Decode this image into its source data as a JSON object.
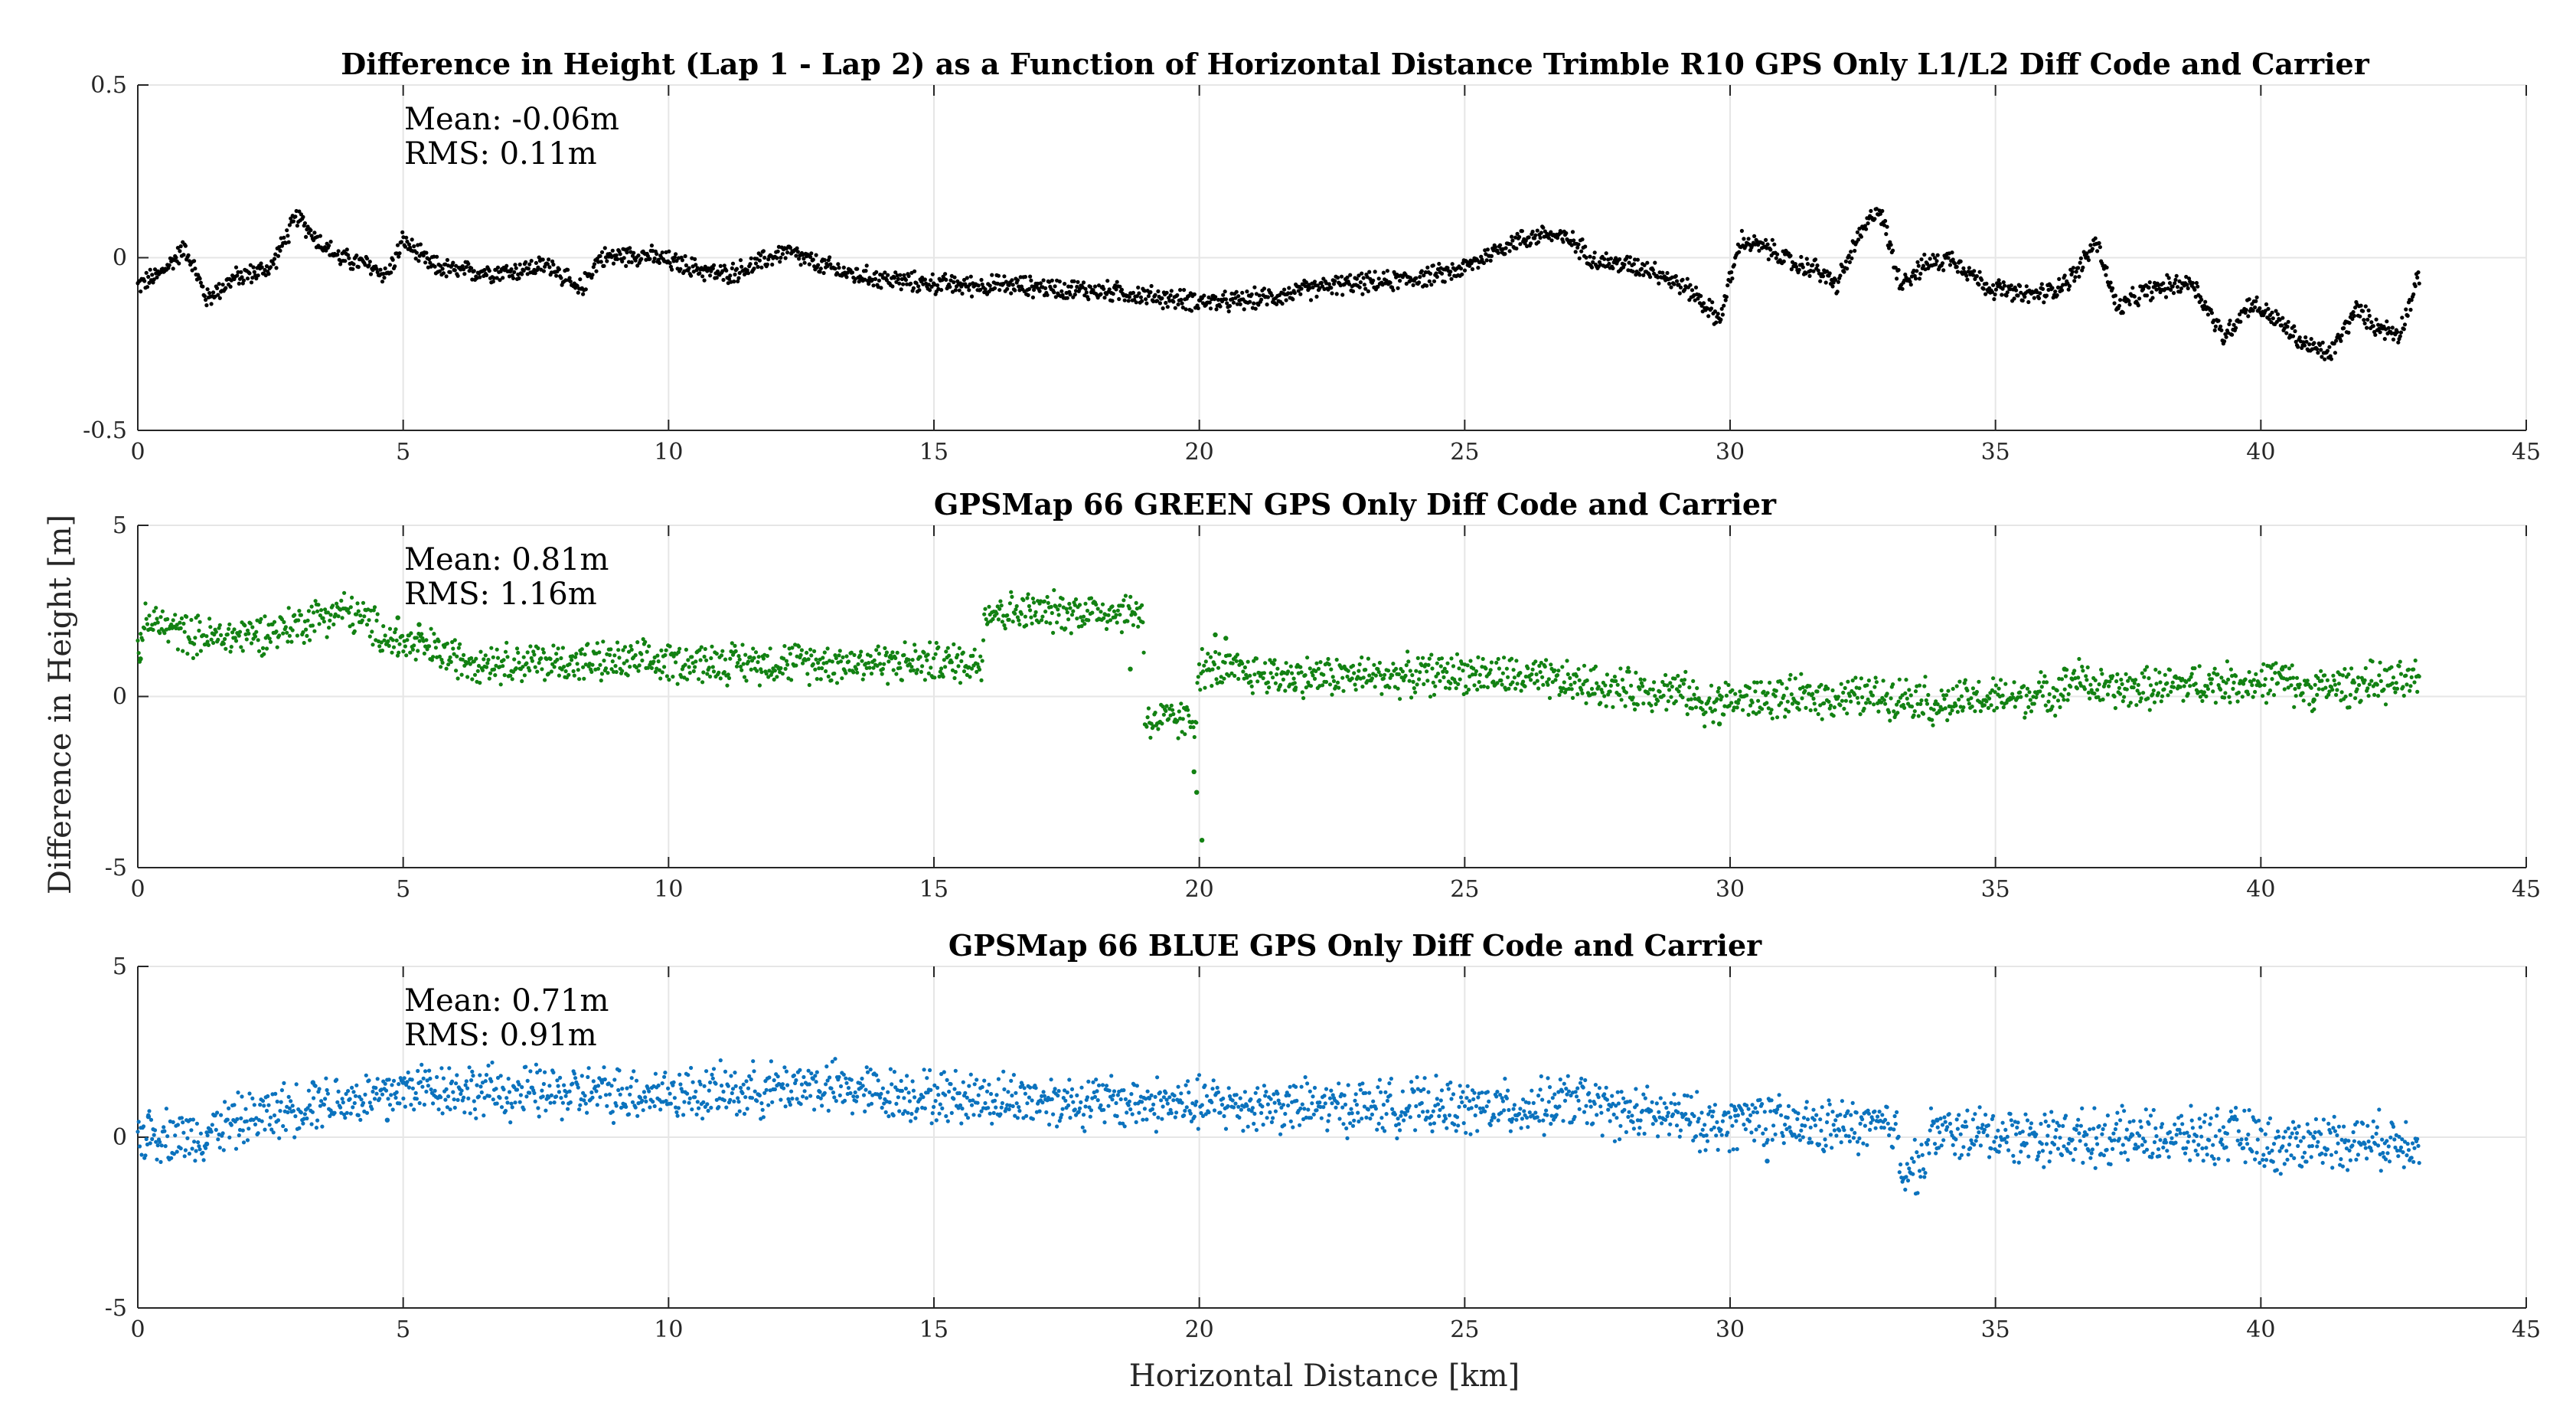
{
  "figure": {
    "ylabel": "Difference in Height [m]",
    "xlabel": "Horizontal Distance [km]"
  },
  "chart_data": [
    {
      "type": "scatter",
      "title": "Difference in Height (Lap 1 - Lap 2) as a Function of Horizontal Distance Trimble R10 GPS Only L1/L2 Diff Code and Carrier",
      "xlim": [
        0,
        45
      ],
      "ylim": [
        -0.5,
        0.5
      ],
      "xticks": [
        0,
        5,
        10,
        15,
        20,
        25,
        30,
        35,
        40,
        45
      ],
      "yticks": [
        -0.5,
        0,
        0.5
      ],
      "yticklabels": [
        "-0.5",
        "0",
        "0.5"
      ],
      "grid": true,
      "color": "#000000",
      "stats": {
        "mean": "Mean: -0.06m",
        "rms": "RMS: 0.11m"
      },
      "x_end": 43,
      "noise": 0.03,
      "series": [
        {
          "name": "Trimble R10",
          "x": [
            0,
            0.4,
            0.9,
            1.3,
            1.8,
            2.5,
            3.0,
            3.4,
            3.8,
            4.3,
            4.7,
            5.0,
            5.5,
            6.0,
            7.0,
            7.8,
            8.3,
            8.7,
            9.5,
            10.5,
            11.0,
            11.5,
            12.2,
            12.8,
            13.5,
            14.5,
            15.5,
            16.5,
            17.5,
            18.5,
            19.5,
            20.5,
            21.5,
            22.5,
            23.5,
            24.5,
            25.0,
            25.8,
            26.5,
            27.0,
            27.5,
            28.5,
            29.3,
            29.8,
            30.2,
            30.8,
            31.2,
            31.6,
            32.0,
            32.4,
            32.8,
            33.2,
            33.7,
            34.2,
            34.8,
            35.5,
            36.0,
            36.5,
            36.9,
            37.3,
            37.8,
            38.3,
            38.7,
            39.3,
            39.8,
            40.3,
            40.8,
            41.3,
            41.8,
            42.2,
            42.6,
            43.0
          ],
          "y": [
            -0.08,
            -0.05,
            0.03,
            -0.12,
            -0.06,
            -0.03,
            0.12,
            0.05,
            0.0,
            -0.02,
            -0.05,
            0.05,
            -0.02,
            -0.04,
            -0.04,
            -0.02,
            -0.1,
            0.0,
            0.01,
            -0.03,
            -0.05,
            -0.03,
            0.02,
            -0.02,
            -0.05,
            -0.07,
            -0.08,
            -0.08,
            -0.09,
            -0.1,
            -0.12,
            -0.13,
            -0.11,
            -0.08,
            -0.07,
            -0.05,
            -0.03,
            0.04,
            0.07,
            0.05,
            -0.01,
            -0.03,
            -0.1,
            -0.18,
            0.05,
            0.02,
            -0.02,
            -0.03,
            -0.08,
            0.05,
            0.15,
            -0.07,
            -0.02,
            0.0,
            -0.08,
            -0.11,
            -0.1,
            -0.05,
            0.05,
            -0.15,
            -0.1,
            -0.08,
            -0.07,
            -0.23,
            -0.13,
            -0.18,
            -0.25,
            -0.28,
            -0.15,
            -0.2,
            -0.22,
            -0.05
          ]
        }
      ]
    },
    {
      "type": "scatter",
      "title": "GPSMap 66 GREEN GPS Only Diff Code and Carrier",
      "xlim": [
        0,
        45
      ],
      "ylim": [
        -5,
        5
      ],
      "xticks": [
        0,
        5,
        10,
        15,
        20,
        25,
        30,
        35,
        40,
        45
      ],
      "yticks": [
        -5,
        0,
        5
      ],
      "yticklabels": [
        "-5",
        "0",
        "5"
      ],
      "grid": true,
      "color": "#128112",
      "stats": {
        "mean": "Mean: 0.81m",
        "rms": "RMS: 1.16m"
      },
      "x_end": 43,
      "noise": 0.06,
      "series": [
        {
          "name": "GPSMap 66 GREEN",
          "x": [
            0,
            0.1,
            0.25,
            0.6,
            1.0,
            1.5,
            2.0,
            2.5,
            3.0,
            3.5,
            3.9,
            4.3,
            4.8,
            5.5,
            6.0,
            7.0,
            8.0,
            9.0,
            10.0,
            11.0,
            12.0,
            13.0,
            14.0,
            15.0,
            15.9,
            15.95,
            16.0,
            17.0,
            18.0,
            18.95,
            18.96,
            19.0,
            19.5,
            19.95,
            19.96,
            20.2,
            20.8,
            21.8,
            22.0,
            23.0,
            24.0,
            25.0,
            26.0,
            27.0,
            28.0,
            29.0,
            29.5,
            30.0,
            31.0,
            32.0,
            33.0,
            33.7,
            33.75,
            34.5,
            35.5,
            36.0,
            36.4,
            36.45,
            37.0,
            38.0,
            39.0,
            40.0,
            40.3,
            40.8,
            41.5,
            42.0,
            43.0
          ],
          "y": [
            1.4,
            2.0,
            2.2,
            2.0,
            1.8,
            1.7,
            1.8,
            1.9,
            2.1,
            2.4,
            2.5,
            2.2,
            1.6,
            1.4,
            1.1,
            1.0,
            1.0,
            1.0,
            1.0,
            1.0,
            1.0,
            1.0,
            1.0,
            1.0,
            1.0,
            2.5,
            2.5,
            2.45,
            2.5,
            2.45,
            -0.6,
            -0.7,
            -0.7,
            -0.7,
            0.8,
            0.8,
            0.7,
            0.6,
            0.6,
            0.6,
            0.6,
            0.7,
            0.55,
            0.4,
            0.2,
            0.2,
            -0.2,
            -0.1,
            -0.05,
            0.0,
            0.0,
            0.0,
            -0.3,
            -0.1,
            0.0,
            0.1,
            0.25,
            0.6,
            0.2,
            0.25,
            0.4,
            0.4,
            0.55,
            0.2,
            0.3,
            0.4,
            0.4
          ]
        }
      ],
      "outliers": [
        {
          "x": 0.05,
          "y": 1.1
        },
        {
          "x": 4.9,
          "y": 2.3
        },
        {
          "x": 5.3,
          "y": 2.1
        },
        {
          "x": 18.7,
          "y": 0.8
        },
        {
          "x": 19.9,
          "y": -2.2
        },
        {
          "x": 19.95,
          "y": -2.8
        },
        {
          "x": 20.05,
          "y": -4.2
        },
        {
          "x": 20.3,
          "y": 1.8
        },
        {
          "x": 20.5,
          "y": 1.7
        },
        {
          "x": 21.8,
          "y": 0.2
        },
        {
          "x": 29.8,
          "y": -0.8
        },
        {
          "x": 36.3,
          "y": 0.8
        },
        {
          "x": 40.4,
          "y": 0.8
        },
        {
          "x": 41.0,
          "y": -0.1
        }
      ]
    },
    {
      "type": "scatter",
      "title": "GPSMap 66 BLUE GPS Only Diff Code and Carrier",
      "xlim": [
        0,
        45
      ],
      "ylim": [
        -5,
        5
      ],
      "xticks": [
        0,
        5,
        10,
        15,
        20,
        25,
        30,
        35,
        40,
        45
      ],
      "yticks": [
        -5,
        0,
        5
      ],
      "yticklabels": [
        "-5",
        "0",
        "5"
      ],
      "grid": true,
      "color": "#0b72bd",
      "stats": {
        "mean": "Mean: 0.71m",
        "rms": "RMS: 0.91m"
      },
      "x_end": 43,
      "noise": 0.08,
      "series": [
        {
          "name": "GPSMap 66 BLUE",
          "x": [
            0,
            0.5,
            1.0,
            1.5,
            2.0,
            2.5,
            3.0,
            3.5,
            4.0,
            4.5,
            5.0,
            5.5,
            6.0,
            7.0,
            8.0,
            9.0,
            10.0,
            11.0,
            12.0,
            12.5,
            13.0,
            14.0,
            15.0,
            16.0,
            17.0,
            18.0,
            19.0,
            20.0,
            21.0,
            22.0,
            23.0,
            24.0,
            25.0,
            26.0,
            26.5,
            27.0,
            27.5,
            28.0,
            29.0,
            29.8,
            30.0,
            30.5,
            31.0,
            31.5,
            32.0,
            33.0,
            33.15,
            33.2,
            33.6,
            33.7,
            33.8,
            34.5,
            35.0,
            36.0,
            37.0,
            38.0,
            39.0,
            39.5,
            40.0,
            40.3,
            41.0,
            42.0,
            43.0
          ],
          "y": [
            0.1,
            0.1,
            0.0,
            0.3,
            0.5,
            0.7,
            0.9,
            1.1,
            1.1,
            1.2,
            1.4,
            1.5,
            1.4,
            1.3,
            1.3,
            1.3,
            1.3,
            1.3,
            1.4,
            1.55,
            1.45,
            1.3,
            1.2,
            1.15,
            1.1,
            1.05,
            1.0,
            0.95,
            0.95,
            0.9,
            0.9,
            0.9,
            0.85,
            0.85,
            0.9,
            1.1,
            0.9,
            0.7,
            0.6,
            0.3,
            0.4,
            0.7,
            0.3,
            0.3,
            0.3,
            0.3,
            0.3,
            -0.9,
            -0.8,
            -0.4,
            0.1,
            0.1,
            0.1,
            0.0,
            0.0,
            0.0,
            0.0,
            0.1,
            -0.1,
            -0.3,
            -0.1,
            -0.1,
            -0.1
          ]
        }
      ],
      "outliers": [
        {
          "x": 0.2,
          "y": 0.6
        },
        {
          "x": 1.3,
          "y": -0.2
        },
        {
          "x": 3.3,
          "y": 1.6
        },
        {
          "x": 4.7,
          "y": 0.5
        },
        {
          "x": 5.0,
          "y": 1.6
        },
        {
          "x": 26.7,
          "y": 0.6
        },
        {
          "x": 30.7,
          "y": -0.7
        },
        {
          "x": 30.1,
          "y": 0.8
        },
        {
          "x": 33.9,
          "y": 0.5
        }
      ]
    }
  ]
}
